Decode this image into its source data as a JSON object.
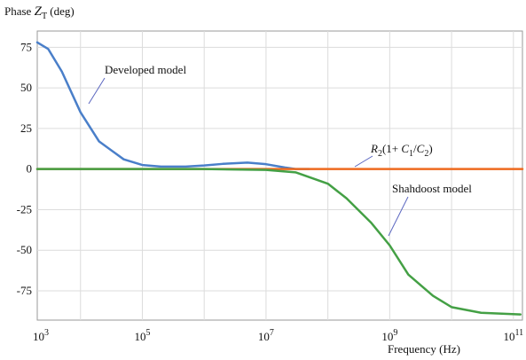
{
  "chart_data": {
    "type": "line",
    "ylabel": {
      "text": "Phase ",
      "var": "Z",
      "sub": "T",
      "unit": " (deg)"
    },
    "xlabel": "Frequency (Hz)",
    "x_scale": "log",
    "xlim": [
      2000,
      140000000000
    ],
    "ylim": [
      -93,
      85
    ],
    "x_ticks": [
      {
        "base": "10",
        "exp": "3"
      },
      {
        "base": "10",
        "exp": "5"
      },
      {
        "base": "10",
        "exp": "7"
      },
      {
        "base": "10",
        "exp": "9"
      },
      {
        "base": "10",
        "exp": "11"
      }
    ],
    "x_tick_values": [
      1000,
      100000,
      10000000,
      1000000000,
      100000000000
    ],
    "y_ticks": [
      "75",
      "50",
      "25",
      "0",
      "-25",
      "-50",
      "-75"
    ],
    "y_tick_values": [
      75,
      50,
      25,
      0,
      -25,
      -50,
      -75
    ],
    "grid": true,
    "series": [
      {
        "name": "Developed model",
        "color": "#4a7fc9",
        "x": [
          2000,
          3000,
          5000,
          10000,
          20000,
          50000,
          100000,
          200000,
          500000,
          1000000,
          2000000,
          5000000,
          10000000,
          20000000,
          30000000,
          50000000
        ],
        "y": [
          78,
          74,
          60,
          35,
          17,
          6,
          2.5,
          1.5,
          1.5,
          2.2,
          3.2,
          4,
          3,
          1,
          0,
          0
        ]
      },
      {
        "name": "R2(1+C1/C2)",
        "color": "#ee6a1f",
        "x": [
          2000,
          100000000,
          140000000000
        ],
        "y": [
          0,
          0,
          0
        ]
      },
      {
        "name": "Shahdoost model",
        "color": "#44a045",
        "x": [
          2000,
          1000000,
          10000000,
          30000000,
          100000000,
          200000000,
          500000000,
          1000000000,
          2000000000,
          5000000000,
          10000000000,
          30000000000,
          130000000000
        ],
        "y": [
          0,
          0,
          -0.5,
          -2,
          -9,
          -18,
          -33,
          -47,
          -65,
          -78,
          -85,
          -88.5,
          -89.5
        ]
      }
    ],
    "annotations": {
      "developed": "Developed model",
      "shahdoost": "Shahdoost model",
      "r2": {
        "R": "R",
        "r_sub": "2",
        "open": "(1+ ",
        "C1": "C",
        "c1_sub": "1",
        "slash": "/",
        "C2": "C",
        "c2_sub": "2",
        "close": ")"
      }
    }
  }
}
